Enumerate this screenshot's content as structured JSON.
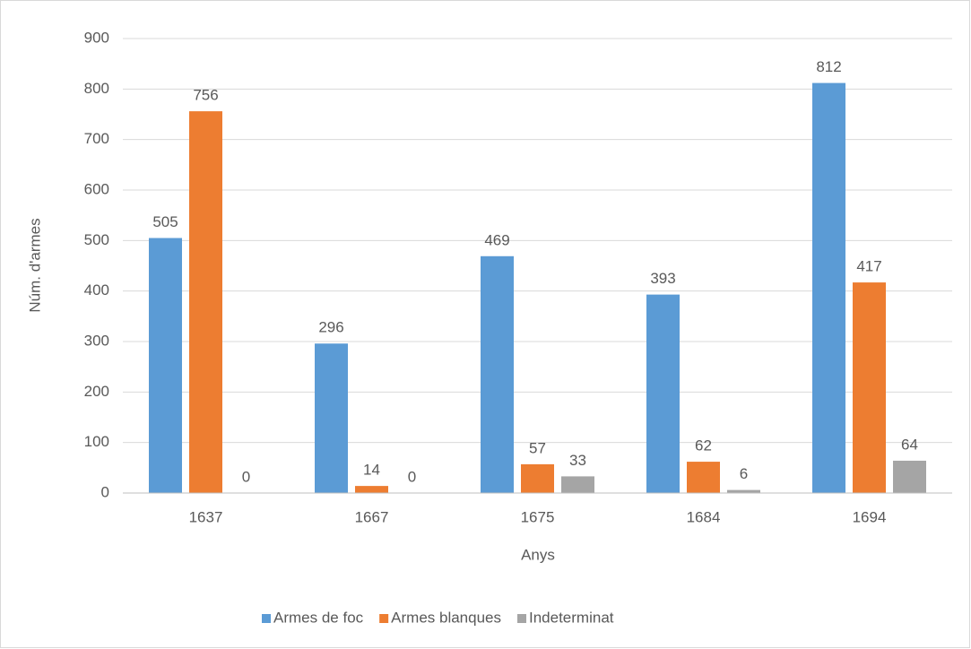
{
  "chart_data": {
    "type": "bar",
    "x_label": "Anys",
    "y_label": "Núm. d'armes",
    "categories": [
      "1637",
      "1667",
      "1675",
      "1684",
      "1694"
    ],
    "series": [
      {
        "name": "Armes de foc",
        "color": "#5b9bd5",
        "values": [
          505,
          296,
          469,
          393,
          812
        ]
      },
      {
        "name": "Armes blanques",
        "color": "#ed7d31",
        "values": [
          756,
          14,
          57,
          62,
          417
        ]
      },
      {
        "name": "Indeterminat",
        "color": "#a5a5a5",
        "values": [
          0,
          0,
          33,
          6,
          64
        ]
      }
    ],
    "ylim": [
      0,
      900
    ],
    "yticks": [
      0,
      100,
      200,
      300,
      400,
      500,
      600,
      700,
      800,
      900
    ],
    "grid": true,
    "legend": "bottom",
    "data_labels": true
  }
}
